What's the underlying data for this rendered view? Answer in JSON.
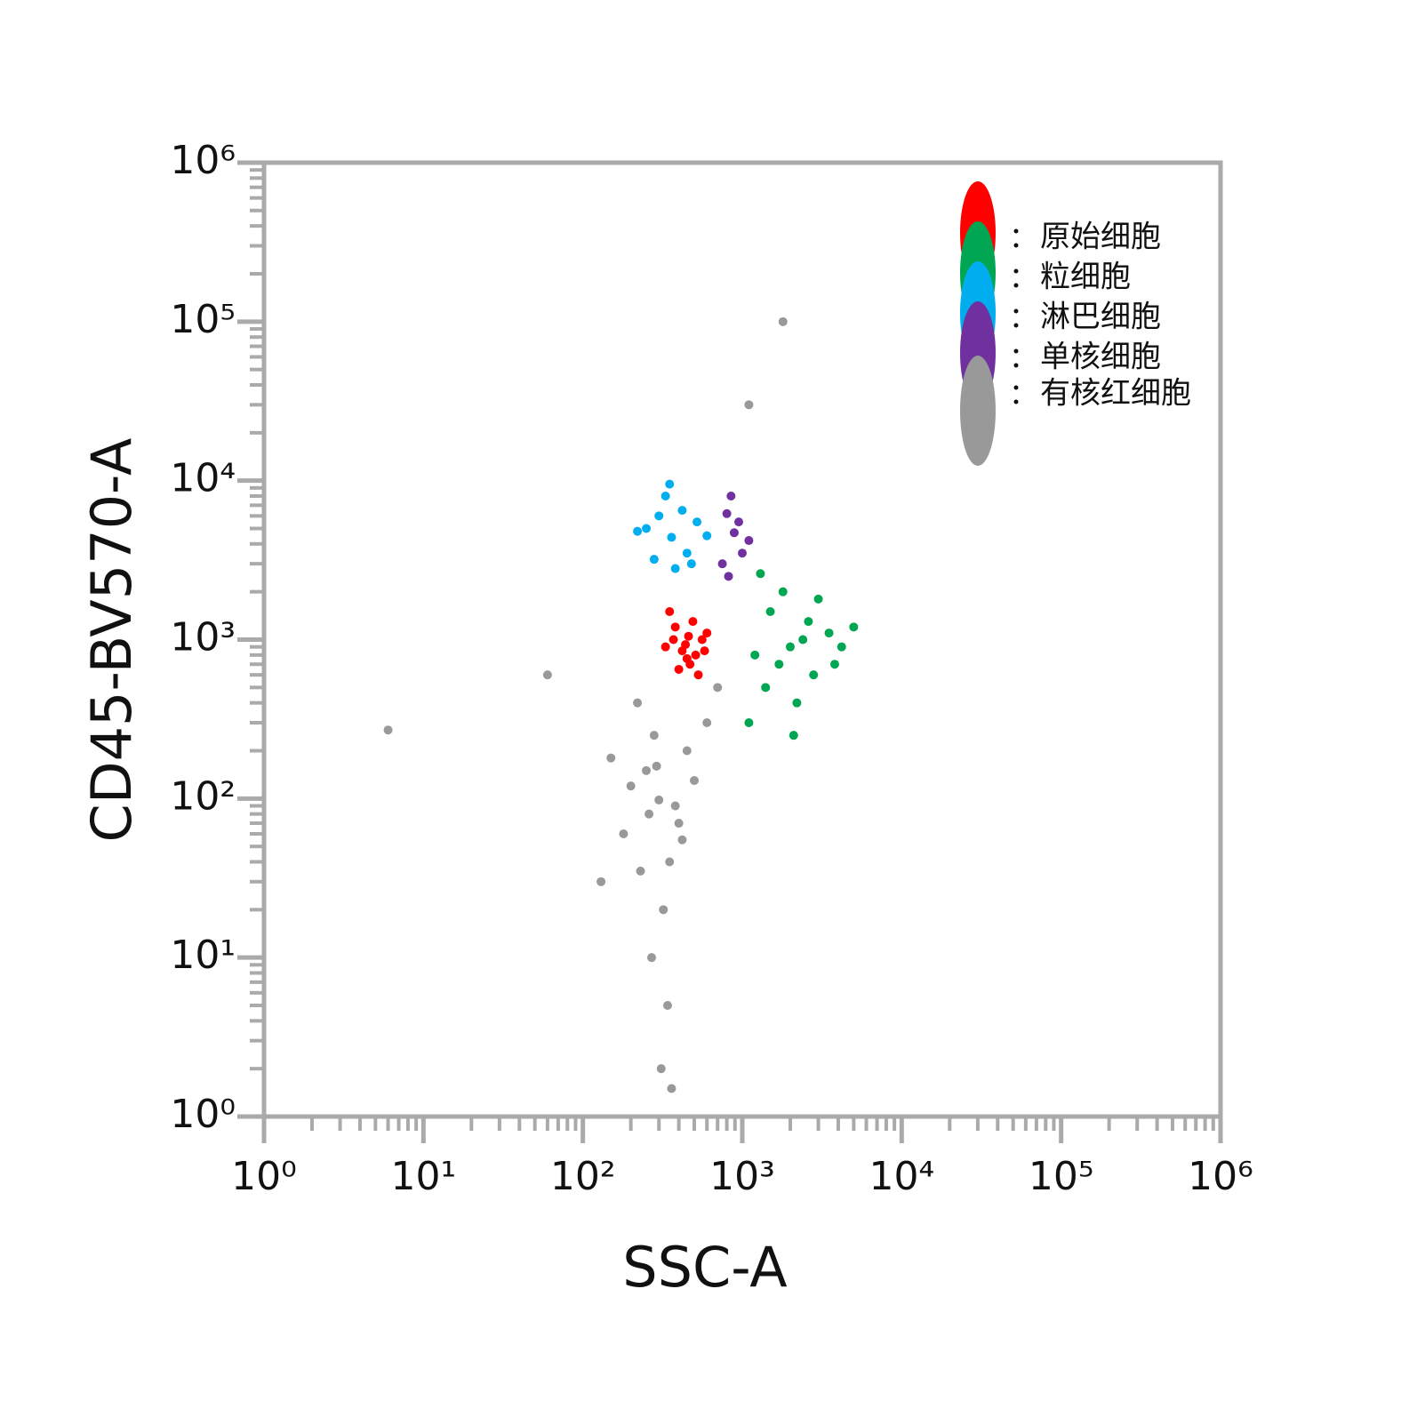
{
  "chart_data": {
    "type": "scatter",
    "x_label": "SSC-A",
    "y_label": "CD45-BV570-A",
    "xscale": "log",
    "yscale": "log",
    "xlim": [
      1,
      1000000
    ],
    "ylim": [
      1,
      1000000
    ],
    "xticks": [
      {
        "value": 1,
        "label": "10⁰"
      },
      {
        "value": 10,
        "label": "10¹"
      },
      {
        "value": 100,
        "label": "10²"
      },
      {
        "value": 1000,
        "label": "10³"
      },
      {
        "value": 10000,
        "label": "10⁴"
      },
      {
        "value": 100000,
        "label": "10⁵"
      },
      {
        "value": 1000000,
        "label": "10⁶"
      }
    ],
    "yticks": [
      {
        "value": 1,
        "label": "10⁰"
      },
      {
        "value": 10,
        "label": "10¹"
      },
      {
        "value": 100,
        "label": "10²"
      },
      {
        "value": 1000,
        "label": "10³"
      },
      {
        "value": 10000,
        "label": "10⁴"
      },
      {
        "value": 100000,
        "label": "10⁵"
      },
      {
        "value": 1000000,
        "label": "10⁶"
      }
    ],
    "minor_ticks": true,
    "legend": "upper right",
    "series": [
      {
        "name": "有核红细胞",
        "color": "#999999",
        "x": [
          300,
          250,
          400,
          200,
          350,
          450,
          180,
          280,
          320,
          500,
          230,
          380,
          150,
          600,
          270,
          340,
          420,
          220,
          310,
          260,
          290,
          700,
          130,
          360,
          6,
          1800,
          60,
          1100
        ],
        "y": [
          98,
          150,
          70,
          120,
          40,
          200,
          60,
          250,
          20,
          130,
          35,
          90,
          180,
          300,
          10,
          5,
          55,
          400,
          2,
          80,
          160,
          500,
          30,
          1.5,
          270,
          100000,
          600,
          30000
        ]
      },
      {
        "name": "原始细胞",
        "color": "#ff0000",
        "x": [
          440,
          380,
          510,
          350,
          560,
          470,
          400,
          600,
          330,
          490,
          420,
          530,
          460,
          370,
          580,
          450
        ],
        "y": [
          930,
          1200,
          800,
          1500,
          1000,
          700,
          650,
          1100,
          900,
          1300,
          850,
          600,
          1050,
          1000,
          850,
          760
        ]
      },
      {
        "name": "粒细胞",
        "color": "#00a651",
        "x": [
          2000,
          1500,
          2800,
          1200,
          3500,
          2200,
          1800,
          4200,
          1400,
          2600,
          1100,
          3000,
          1700,
          2400,
          5000,
          1300,
          2100,
          3800
        ],
        "y": [
          900,
          1500,
          600,
          800,
          1100,
          400,
          2000,
          900,
          500,
          1300,
          300,
          1800,
          700,
          1000,
          1200,
          2600,
          250,
          700
        ]
      },
      {
        "name": "淋巴细胞",
        "color": "#00aeef",
        "x": [
          360,
          300,
          450,
          250,
          520,
          380,
          330,
          600,
          280,
          420,
          220,
          480,
          350
        ],
        "y": [
          4400,
          6000,
          3500,
          5000,
          5500,
          2800,
          8000,
          4500,
          3200,
          6500,
          4800,
          3000,
          9500
        ]
      },
      {
        "name": "单核细胞",
        "color": "#7030a0",
        "x": [
          890,
          800,
          1000,
          750,
          950,
          850,
          1100,
          820
        ],
        "y": [
          4700,
          6200,
          3500,
          3000,
          5500,
          8000,
          4200,
          2500
        ]
      }
    ],
    "legend_order": [
      1,
      2,
      3,
      4,
      0
    ]
  }
}
